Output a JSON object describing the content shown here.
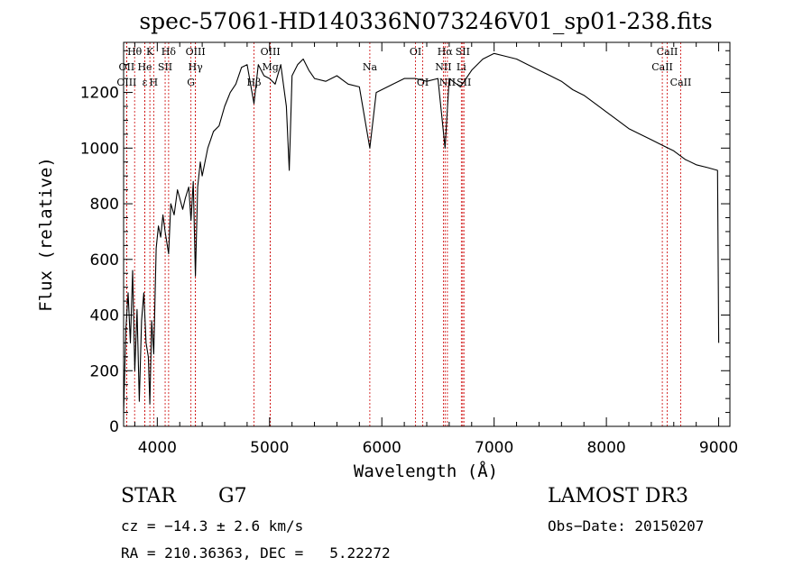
{
  "chart_data": {
    "type": "line",
    "title": "spec-57061-HD140336N073246V01_sp01-238.fits",
    "xlabel": "Wavelength (Å)",
    "ylabel": "Flux (relative)",
    "xlim": [
      3700,
      9100
    ],
    "ylim": [
      0,
      1380
    ],
    "xticks": [
      4000,
      5000,
      6000,
      7000,
      8000,
      9000
    ],
    "yticks": [
      0,
      200,
      400,
      600,
      800,
      1000,
      1200
    ],
    "grid": false,
    "series": [
      {
        "x": [
          3700,
          3720,
          3740,
          3760,
          3780,
          3800,
          3820,
          3840,
          3860,
          3880,
          3900,
          3920,
          3934,
          3950,
          3968,
          3990,
          4010,
          4030,
          4050,
          4070,
          4101,
          4120,
          4150,
          4180,
          4200,
          4226,
          4250,
          4280,
          4300,
          4320,
          4340,
          4360,
          4383,
          4400,
          4450,
          4500,
          4550,
          4600,
          4650,
          4700,
          4750,
          4800,
          4861,
          4900,
          4950,
          5000,
          5050,
          5100,
          5150,
          5175,
          5200,
          5250,
          5300,
          5350,
          5400,
          5500,
          5600,
          5700,
          5800,
          5893,
          5950,
          6000,
          6100,
          6200,
          6300,
          6400,
          6500,
          6563,
          6600,
          6700,
          6800,
          6900,
          7000,
          7100,
          7200,
          7300,
          7400,
          7500,
          7600,
          7700,
          7800,
          7900,
          8000,
          8100,
          8200,
          8300,
          8400,
          8500,
          8600,
          8700,
          8800,
          8900,
          8990,
          9000
        ],
        "y": [
          50,
          350,
          480,
          300,
          560,
          200,
          420,
          90,
          380,
          480,
          300,
          250,
          80,
          380,
          260,
          640,
          720,
          680,
          760,
          700,
          620,
          800,
          760,
          850,
          820,
          780,
          820,
          860,
          740,
          880,
          540,
          860,
          950,
          900,
          1000,
          1060,
          1080,
          1150,
          1200,
          1230,
          1290,
          1300,
          1160,
          1300,
          1260,
          1250,
          1230,
          1300,
          1150,
          920,
          1260,
          1300,
          1320,
          1280,
          1250,
          1240,
          1260,
          1230,
          1220,
          1000,
          1200,
          1210,
          1230,
          1250,
          1250,
          1240,
          1250,
          1000,
          1250,
          1220,
          1280,
          1320,
          1340,
          1330,
          1320,
          1300,
          1280,
          1260,
          1240,
          1210,
          1190,
          1160,
          1130,
          1100,
          1070,
          1050,
          1030,
          1010,
          990,
          960,
          940,
          930,
          920,
          300
        ]
      }
    ],
    "spectral_lines": [
      {
        "label": "Hθ",
        "x": 3798,
        "row": 0
      },
      {
        "label": "OII",
        "x": 3727,
        "row": 1
      },
      {
        "label": "OIII",
        "x": 3727,
        "row": 2
      },
      {
        "label": "He",
        "x": 3889,
        "row": 1
      },
      {
        "label": "ε",
        "x": 3889,
        "row": 2
      },
      {
        "label": "K",
        "x": 3934,
        "row": 0
      },
      {
        "label": "SII",
        "x": 4070,
        "row": 1
      },
      {
        "label": "H",
        "x": 3968,
        "row": 2
      },
      {
        "label": "Hδ",
        "x": 4101,
        "row": 0
      },
      {
        "label": "OIII",
        "x": 4340,
        "row": 0
      },
      {
        "label": "Hγ",
        "x": 4340,
        "row": 1
      },
      {
        "label": "G",
        "x": 4300,
        "row": 2
      },
      {
        "label": "Hβ",
        "x": 4861,
        "row": 2
      },
      {
        "label": "OIII",
        "x": 5007,
        "row": 0
      },
      {
        "label": "Mg",
        "x": 5007,
        "row": 1
      },
      {
        "label": "Na",
        "x": 5893,
        "row": 1
      },
      {
        "label": "OI",
        "x": 6300,
        "row": 0
      },
      {
        "label": "OI",
        "x": 6364,
        "row": 2
      },
      {
        "label": "Hα",
        "x": 6563,
        "row": 0
      },
      {
        "label": "SII",
        "x": 6720,
        "row": 0
      },
      {
        "label": "NII",
        "x": 6548,
        "row": 1
      },
      {
        "label": "Li",
        "x": 6708,
        "row": 1
      },
      {
        "label": "NII",
        "x": 6584,
        "row": 2
      },
      {
        "label": "SII",
        "x": 6731,
        "row": 2
      },
      {
        "label": "CaII",
        "x": 8542,
        "row": 0
      },
      {
        "label": "CaII",
        "x": 8498,
        "row": 1
      },
      {
        "label": "CaII",
        "x": 8662,
        "row": 2
      }
    ],
    "line_color": "#cc0000"
  },
  "info": {
    "object_class": "STAR",
    "subclass": "G7",
    "survey": "LAMOST DR3",
    "redshift": "cz = −14.3 ± 2.6 km/s",
    "obs_date": "Obs−Date: 20150207",
    "coords": "RA = 210.36363, DEC =   5.22272"
  }
}
